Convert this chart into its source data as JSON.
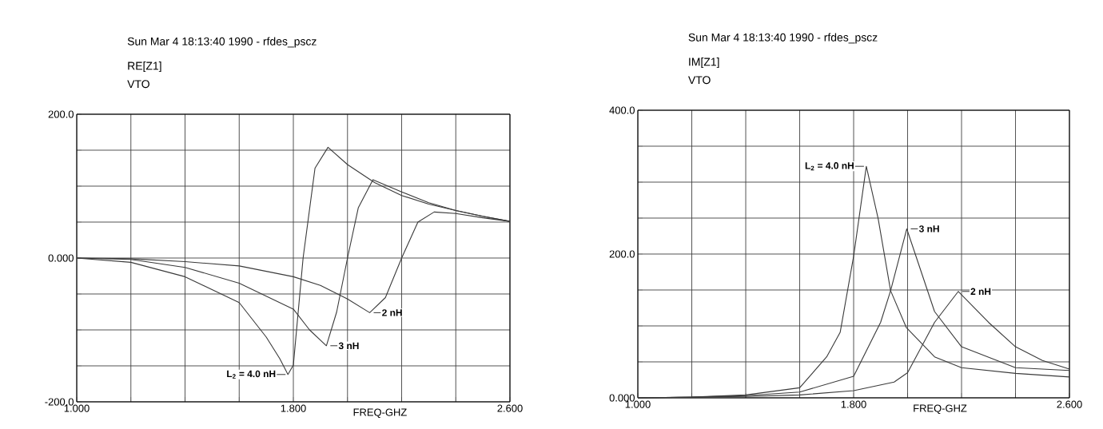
{
  "chart_data": [
    {
      "type": "line",
      "title": "Sun Mar 4 18:13:40 1990 - rfdes_pscz",
      "ylabel": "RE[Z1]",
      "subtitle": "VTO",
      "xlabel": "FREQ-GHZ",
      "xlim": [
        1.0,
        2.6
      ],
      "ylim": [
        -200,
        200
      ],
      "grid": true,
      "xticks": [
        {
          "value": 1.0,
          "label": "1.000"
        },
        {
          "value": 1.2,
          "label": null
        },
        {
          "value": 1.4,
          "label": null
        },
        {
          "value": 1.6,
          "label": null
        },
        {
          "value": 1.8,
          "label": "1.800"
        },
        {
          "value": 2.0,
          "label": null
        },
        {
          "value": 2.2,
          "label": null
        },
        {
          "value": 2.4,
          "label": null
        },
        {
          "value": 2.6,
          "label": "2.600"
        }
      ],
      "yticks": [
        {
          "value": -200,
          "label": "-200.0"
        },
        {
          "value": -150,
          "label": null
        },
        {
          "value": -100,
          "label": null
        },
        {
          "value": -50,
          "label": null
        },
        {
          "value": 0,
          "label": "0.000"
        },
        {
          "value": 50,
          "label": null
        },
        {
          "value": 100,
          "label": null
        },
        {
          "value": 150,
          "label": null
        },
        {
          "value": 200,
          "label": "200.0"
        }
      ],
      "series": [
        {
          "name": "L$_{2}$ = 4.0 nH",
          "color": "#3a3a3a",
          "x": [
            1.0,
            1.2,
            1.4,
            1.6,
            1.7,
            1.75,
            1.78,
            1.8,
            1.836,
            1.88,
            1.928,
            2.0,
            2.1,
            2.2,
            2.3,
            2.4,
            2.5,
            2.6
          ],
          "values": [
            0,
            -6,
            -26,
            -62,
            -110,
            -140,
            -162,
            -149,
            0,
            125,
            154,
            130,
            105,
            87,
            75,
            66,
            58,
            51
          ]
        },
        {
          "name": "3 nH",
          "color": "#3a3a3a",
          "x": [
            1.0,
            1.2,
            1.4,
            1.6,
            1.8,
            1.86,
            1.922,
            1.96,
            2.0,
            2.04,
            2.094,
            2.2,
            2.3,
            2.4,
            2.5,
            2.6
          ],
          "values": [
            0,
            -2,
            -13,
            -35,
            -71,
            -100,
            -122,
            -75,
            0,
            70,
            109,
            92,
            77,
            66,
            58,
            51
          ]
        },
        {
          "name": "2 nH",
          "color": "#3a3a3a",
          "x": [
            1.0,
            1.2,
            1.4,
            1.6,
            1.8,
            1.9,
            2.0,
            2.082,
            2.14,
            2.2,
            2.26,
            2.32,
            2.4,
            2.5,
            2.6
          ],
          "values": [
            0,
            -1,
            -5,
            -11,
            -26,
            -38,
            -57,
            -76,
            -55,
            0,
            50,
            64,
            62,
            56,
            51
          ]
        }
      ]
    },
    {
      "type": "line",
      "title": "Sun Mar 4 18:13:40 1990 - rfdes_pscz",
      "ylabel": "IM[Z1]",
      "subtitle": "VTO",
      "xlabel": "FREQ-GHZ",
      "xlim": [
        1.0,
        2.6
      ],
      "ylim": [
        0,
        400
      ],
      "grid": true,
      "xticks": [
        {
          "value": 1.0,
          "label": "1.000"
        },
        {
          "value": 1.2,
          "label": null
        },
        {
          "value": 1.4,
          "label": null
        },
        {
          "value": 1.6,
          "label": null
        },
        {
          "value": 1.8,
          "label": "1.800"
        },
        {
          "value": 2.0,
          "label": null
        },
        {
          "value": 2.2,
          "label": null
        },
        {
          "value": 2.4,
          "label": null
        },
        {
          "value": 2.6,
          "label": "2.600"
        }
      ],
      "yticks": [
        {
          "value": 0,
          "label": "0.000"
        },
        {
          "value": 50,
          "label": null
        },
        {
          "value": 100,
          "label": null
        },
        {
          "value": 150,
          "label": null
        },
        {
          "value": 200,
          "label": "200.0"
        },
        {
          "value": 250,
          "label": null
        },
        {
          "value": 300,
          "label": null
        },
        {
          "value": 350,
          "label": null
        },
        {
          "value": 400,
          "label": "400.0"
        }
      ],
      "series": [
        {
          "name": "L$_{2}$ = 4.0 nH",
          "color": "#3a3a3a",
          "x": [
            1.0,
            1.2,
            1.4,
            1.6,
            1.7,
            1.75,
            1.8,
            1.847,
            1.891,
            1.937,
            1.995,
            2.1,
            2.2,
            2.4,
            2.6
          ],
          "values": [
            0,
            1,
            4,
            14,
            57,
            91,
            197,
            322,
            249,
            149,
            98,
            57,
            42,
            34,
            29
          ]
        },
        {
          "name": "3 nH",
          "color": "#3a3a3a",
          "x": [
            1.0,
            1.2,
            1.4,
            1.6,
            1.8,
            1.9,
            1.937,
            1.997,
            2.1,
            2.2,
            2.4,
            2.6
          ],
          "values": [
            0,
            1,
            3,
            8,
            30,
            105,
            149,
            235,
            120,
            71,
            42,
            38
          ]
        },
        {
          "name": "2 nH",
          "color": "#3a3a3a",
          "x": [
            1.0,
            1.4,
            1.6,
            1.8,
            1.95,
            2.0,
            2.1,
            2.188,
            2.3,
            2.4,
            2.5,
            2.6
          ],
          "values": [
            0,
            2,
            4,
            10,
            22,
            35,
            105,
            148,
            105,
            71,
            52,
            40
          ]
        }
      ]
    }
  ]
}
